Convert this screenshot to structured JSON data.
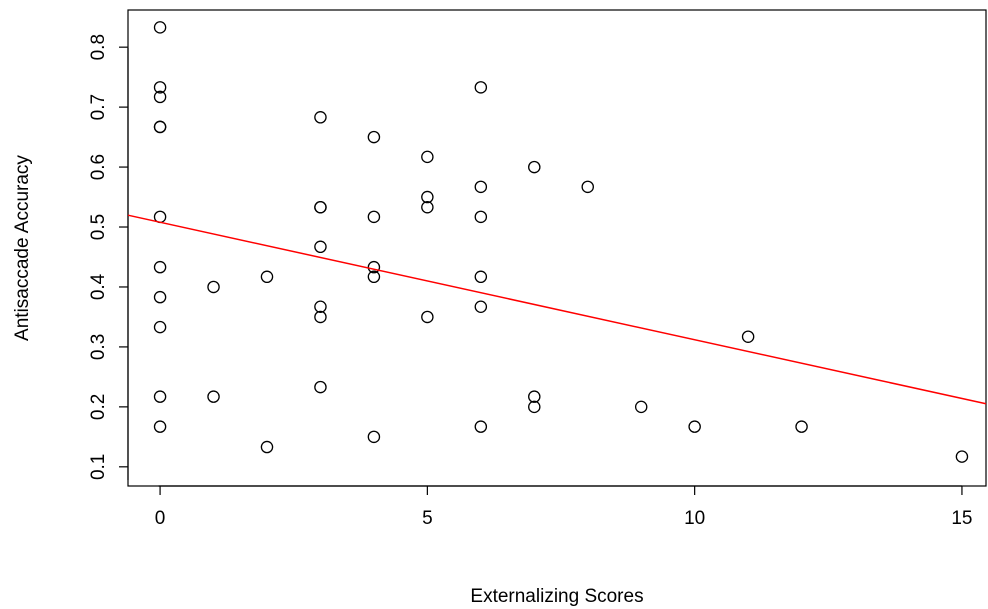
{
  "chart_data": {
    "type": "scatter",
    "title": "",
    "xlabel": "Externalizing Scores",
    "ylabel": "Antisaccade Accuracy",
    "xlim": [
      -0.6,
      15.45
    ],
    "ylim": [
      0.068,
      0.862
    ],
    "x_ticks": [
      0,
      5,
      10,
      15
    ],
    "x_tick_labels": [
      "0",
      "5",
      "10",
      "15"
    ],
    "y_ticks": [
      0.1,
      0.2,
      0.3,
      0.4,
      0.5,
      0.6,
      0.7,
      0.8
    ],
    "y_tick_labels": [
      "0.1",
      "0.2",
      "0.3",
      "0.4",
      "0.5",
      "0.6",
      "0.7",
      "0.8"
    ],
    "grid": false,
    "legend": "none",
    "points": [
      {
        "x": 0,
        "y": 0.833
      },
      {
        "x": 0,
        "y": 0.733
      },
      {
        "x": 0,
        "y": 0.717
      },
      {
        "x": 0,
        "y": 0.667
      },
      {
        "x": 0,
        "y": 0.667
      },
      {
        "x": 0,
        "y": 0.517
      },
      {
        "x": 0,
        "y": 0.433
      },
      {
        "x": 0,
        "y": 0.383
      },
      {
        "x": 0,
        "y": 0.333
      },
      {
        "x": 0,
        "y": 0.217
      },
      {
        "x": 0,
        "y": 0.167
      },
      {
        "x": 1,
        "y": 0.4
      },
      {
        "x": 1,
        "y": 0.217
      },
      {
        "x": 2,
        "y": 0.417
      },
      {
        "x": 2,
        "y": 0.133
      },
      {
        "x": 3,
        "y": 0.683
      },
      {
        "x": 3,
        "y": 0.533
      },
      {
        "x": 3,
        "y": 0.533
      },
      {
        "x": 3,
        "y": 0.467
      },
      {
        "x": 3,
        "y": 0.367
      },
      {
        "x": 3,
        "y": 0.35
      },
      {
        "x": 3,
        "y": 0.233
      },
      {
        "x": 4,
        "y": 0.65
      },
      {
        "x": 4,
        "y": 0.517
      },
      {
        "x": 4,
        "y": 0.433
      },
      {
        "x": 4,
        "y": 0.417
      },
      {
        "x": 4,
        "y": 0.15
      },
      {
        "x": 5,
        "y": 0.617
      },
      {
        "x": 5,
        "y": 0.55
      },
      {
        "x": 5,
        "y": 0.533
      },
      {
        "x": 5,
        "y": 0.35
      },
      {
        "x": 6,
        "y": 0.733
      },
      {
        "x": 6,
        "y": 0.567
      },
      {
        "x": 6,
        "y": 0.517
      },
      {
        "x": 6,
        "y": 0.417
      },
      {
        "x": 6,
        "y": 0.367
      },
      {
        "x": 6,
        "y": 0.167
      },
      {
        "x": 7,
        "y": 0.6
      },
      {
        "x": 7,
        "y": 0.217
      },
      {
        "x": 7,
        "y": 0.2
      },
      {
        "x": 8,
        "y": 0.567
      },
      {
        "x": 9,
        "y": 0.2
      },
      {
        "x": 10,
        "y": 0.167
      },
      {
        "x": 11,
        "y": 0.317
      },
      {
        "x": 12,
        "y": 0.167
      },
      {
        "x": 15,
        "y": 0.117
      }
    ],
    "regression_line": {
      "intercept": 0.508,
      "slope": -0.0196,
      "color": "#ff0000"
    },
    "point_color": "#000000"
  }
}
